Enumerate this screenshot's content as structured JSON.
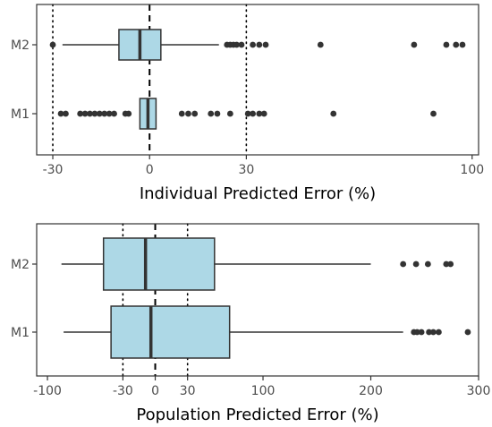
{
  "colors": {
    "box_fill": "#add8e6",
    "box_stroke": "#333333",
    "outlier": "#333333",
    "axis_text": "#4d4d4d",
    "frame": "#333333"
  },
  "chart_data": [
    {
      "type": "boxplot",
      "orientation": "horizontal",
      "title": "",
      "xlabel": "Individual Predicted Error (%)",
      "ylabel": "",
      "xlim": [
        -35,
        102
      ],
      "xticks": [
        -30,
        0,
        30,
        100
      ],
      "xtick_labels": [
        "-30",
        "0",
        "30",
        "100"
      ],
      "categories": [
        "M2",
        "M1"
      ],
      "reference_lines": [
        {
          "x": 0,
          "style": "dashed"
        },
        {
          "x": -30,
          "style": "dotted"
        },
        {
          "x": 30,
          "style": "dotted"
        }
      ],
      "grid": false,
      "boxes": [
        {
          "name": "M2",
          "whisker_low": -27,
          "q1": -9.5,
          "median": -3,
          "q3": 3.5,
          "whisker_high": 21.5,
          "outliers": [
            -30,
            24,
            25,
            26,
            27,
            28.5,
            32,
            34,
            36,
            53,
            82,
            92,
            95,
            97
          ]
        },
        {
          "name": "M1",
          "whisker_low": -3,
          "q1": -3,
          "median": -0.5,
          "q3": 2,
          "whisker_high": 2,
          "outliers": [
            -27.5,
            -26,
            -21.5,
            -20,
            -18.5,
            -17,
            -15.5,
            -14,
            -12.5,
            -11,
            -7.5,
            -6.5,
            10,
            12,
            14,
            19,
            21,
            25,
            30.5,
            32,
            34,
            35.5,
            57,
            88
          ]
        }
      ]
    },
    {
      "type": "boxplot",
      "orientation": "horizontal",
      "title": "",
      "xlabel": "Population Predicted Error (%)",
      "ylabel": "",
      "xlim": [
        -110,
        300
      ],
      "xticks": [
        -100,
        -30,
        0,
        30,
        100,
        200,
        300
      ],
      "xtick_labels": [
        "-100",
        "-30",
        "0",
        "30",
        "100",
        "200",
        "300"
      ],
      "categories": [
        "M2",
        "M1"
      ],
      "reference_lines": [
        {
          "x": 0,
          "style": "dashed"
        },
        {
          "x": -30,
          "style": "dotted"
        },
        {
          "x": 30,
          "style": "dotted"
        }
      ],
      "grid": false,
      "boxes": [
        {
          "name": "M2",
          "whisker_low": -87,
          "q1": -48,
          "median": -9,
          "q3": 55,
          "whisker_high": 200,
          "outliers": [
            230,
            242,
            253,
            270,
            274
          ]
        },
        {
          "name": "M1",
          "whisker_low": -85,
          "q1": -41,
          "median": -4,
          "q3": 69,
          "whisker_high": 230,
          "outliers": [
            240,
            243,
            247,
            254,
            258,
            263,
            290
          ]
        }
      ]
    }
  ]
}
